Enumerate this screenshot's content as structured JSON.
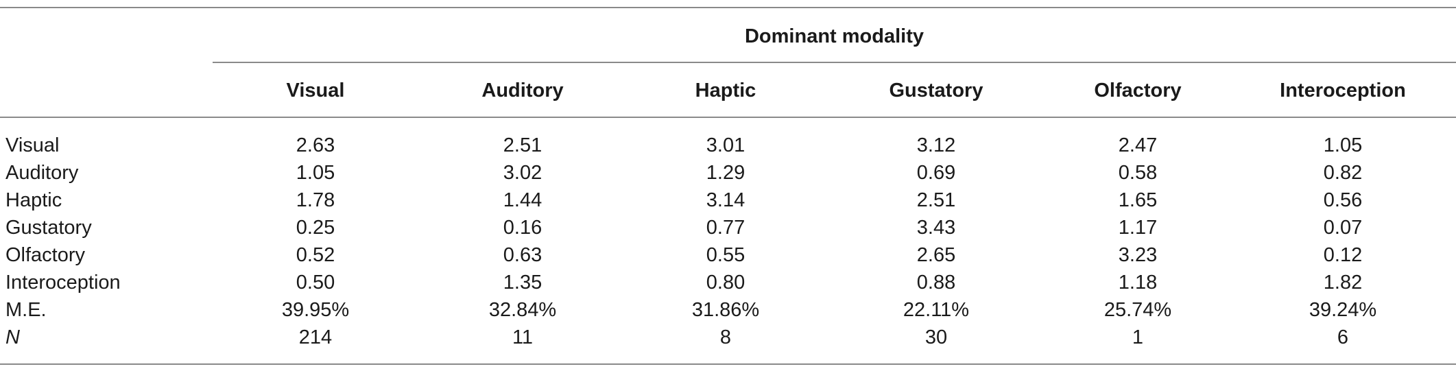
{
  "table": {
    "group_header": "Dominant modality",
    "columns": [
      "Visual",
      "Auditory",
      "Haptic",
      "Gustatory",
      "Olfactory",
      "Interoception"
    ],
    "rows": [
      {
        "label": "Visual",
        "italic": false,
        "values": [
          "2.63",
          "2.51",
          "3.01",
          "3.12",
          "2.47",
          "1.05"
        ]
      },
      {
        "label": "Auditory",
        "italic": false,
        "values": [
          "1.05",
          "3.02",
          "1.29",
          "0.69",
          "0.58",
          "0.82"
        ]
      },
      {
        "label": "Haptic",
        "italic": false,
        "values": [
          "1.78",
          "1.44",
          "3.14",
          "2.51",
          "1.65",
          "0.56"
        ]
      },
      {
        "label": "Gustatory",
        "italic": false,
        "values": [
          "0.25",
          "0.16",
          "0.77",
          "3.43",
          "1.17",
          "0.07"
        ]
      },
      {
        "label": "Olfactory",
        "italic": false,
        "values": [
          "0.52",
          "0.63",
          "0.55",
          "2.65",
          "3.23",
          "0.12"
        ]
      },
      {
        "label": "Interoception",
        "italic": false,
        "values": [
          "0.50",
          "1.35",
          "0.80",
          "0.88",
          "1.18",
          "1.82"
        ]
      },
      {
        "label": "M.E.",
        "italic": false,
        "values": [
          "39.95%",
          "32.84%",
          "31.86%",
          "22.11%",
          "25.74%",
          "39.24%"
        ]
      },
      {
        "label": "N",
        "italic": true,
        "values": [
          "214",
          "11",
          "8",
          "30",
          "1",
          "6"
        ]
      }
    ]
  }
}
